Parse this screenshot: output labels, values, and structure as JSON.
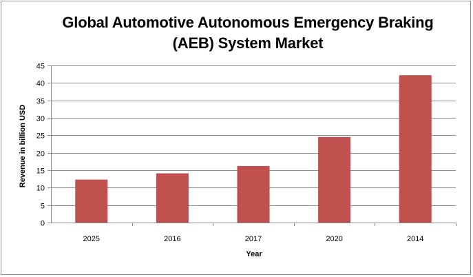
{
  "chart_data": {
    "type": "bar",
    "title_lines": [
      "Global Automotive Autonomous Emergency Braking",
      "(AEB) System Market"
    ],
    "xlabel": "Year",
    "ylabel": "Revenue in billion USD",
    "categories": [
      "2025",
      "2016",
      "2017",
      "2020",
      "2014"
    ],
    "values": [
      12.3,
      14.1,
      16.2,
      24.5,
      42.2
    ],
    "ylim": [
      0,
      45
    ],
    "yticks": [
      0,
      5,
      10,
      15,
      20,
      25,
      30,
      35,
      40,
      45
    ],
    "bar_color": "#c0504d",
    "grid": true,
    "legend": "none"
  }
}
